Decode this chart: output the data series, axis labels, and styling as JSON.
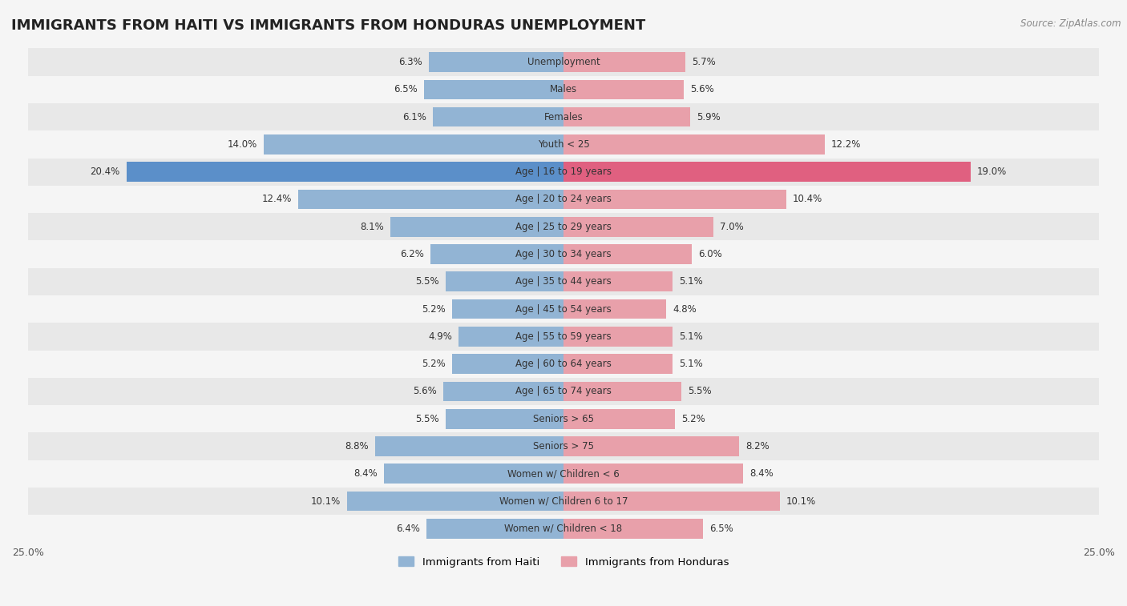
{
  "title": "IMMIGRANTS FROM HAITI VS IMMIGRANTS FROM HONDURAS UNEMPLOYMENT",
  "source": "Source: ZipAtlas.com",
  "categories": [
    "Unemployment",
    "Males",
    "Females",
    "Youth < 25",
    "Age | 16 to 19 years",
    "Age | 20 to 24 years",
    "Age | 25 to 29 years",
    "Age | 30 to 34 years",
    "Age | 35 to 44 years",
    "Age | 45 to 54 years",
    "Age | 55 to 59 years",
    "Age | 60 to 64 years",
    "Age | 65 to 74 years",
    "Seniors > 65",
    "Seniors > 75",
    "Women w/ Children < 6",
    "Women w/ Children 6 to 17",
    "Women w/ Children < 18"
  ],
  "haiti_values": [
    6.3,
    6.5,
    6.1,
    14.0,
    20.4,
    12.4,
    8.1,
    6.2,
    5.5,
    5.2,
    4.9,
    5.2,
    5.6,
    5.5,
    8.8,
    8.4,
    10.1,
    6.4
  ],
  "honduras_values": [
    5.7,
    5.6,
    5.9,
    12.2,
    19.0,
    10.4,
    7.0,
    6.0,
    5.1,
    4.8,
    5.1,
    5.1,
    5.5,
    5.2,
    8.2,
    8.4,
    10.1,
    6.5
  ],
  "haiti_color": "#92b4d4",
  "honduras_color": "#e8a0aa",
  "highlight_haiti_color": "#5b8fc9",
  "highlight_honduras_color": "#e06080",
  "background_color": "#f5f5f5",
  "row_colors": [
    "#e8e8e8",
    "#f5f5f5"
  ],
  "axis_limit": 25.0,
  "legend_haiti": "Immigrants from Haiti",
  "legend_honduras": "Immigrants from Honduras",
  "highlight_idx": 4
}
